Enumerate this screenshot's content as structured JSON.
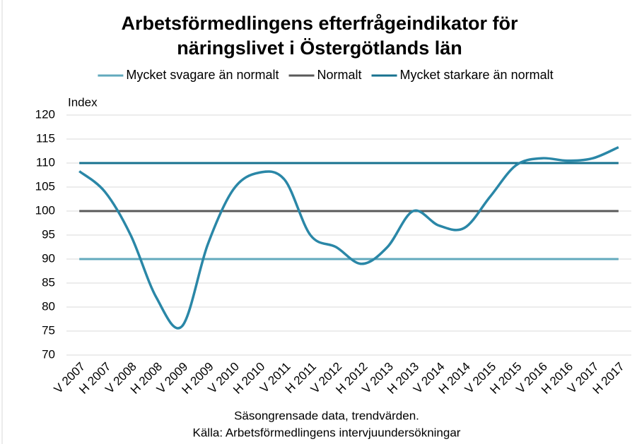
{
  "chart_data": {
    "type": "line",
    "title": [
      "Arbetsförmedlingens efterfrågeindikator för",
      "näringslivet i Östergötlands län"
    ],
    "y_label": "Index",
    "footnotes": [
      "Säsongrensade data, trendvärden.",
      "Källa: Arbetsförmedlingens intervjuundersökningar"
    ],
    "categories": [
      "V 2007",
      "H 2007",
      "V 2008",
      "H 2008",
      "V 2009",
      "H 2009",
      "V 2010",
      "H 2010",
      "V 2011",
      "H 2011",
      "V 2012",
      "H 2012",
      "V 2013",
      "H 2013",
      "V 2014",
      "H 2014",
      "V 2015",
      "H 2015",
      "V 2016",
      "H 2016",
      "V 2017",
      "H 2017"
    ],
    "series": [
      {
        "name": "Mycket svagare än normalt",
        "color": "#62a9bd",
        "values": [
          90,
          90,
          90,
          90,
          90,
          90,
          90,
          90,
          90,
          90,
          90,
          90,
          90,
          90,
          90,
          90,
          90,
          90,
          90,
          90,
          90,
          90
        ]
      },
      {
        "name": "Normalt",
        "color": "#595959",
        "values": [
          100,
          100,
          100,
          100,
          100,
          100,
          100,
          100,
          100,
          100,
          100,
          100,
          100,
          100,
          100,
          100,
          100,
          100,
          100,
          100,
          100,
          100
        ]
      },
      {
        "name": "Mycket starkare än normalt",
        "color": "#17728f",
        "values": [
          110,
          110,
          110,
          110,
          110,
          110,
          110,
          110,
          110,
          110,
          110,
          110,
          110,
          110,
          110,
          110,
          110,
          110,
          110,
          110,
          110,
          110
        ]
      },
      {
        "color": "#2a87a7",
        "values": [
          108.3,
          104,
          95,
          82,
          76,
          93,
          104.5,
          108,
          106.5,
          95,
          92.5,
          89,
          92.5,
          100,
          97,
          96.5,
          103,
          109.5,
          111,
          110.5,
          111,
          113.3
        ]
      }
    ],
    "ylim": [
      70,
      120
    ],
    "yticks": [
      70,
      75,
      80,
      85,
      90,
      95,
      100,
      105,
      110,
      115,
      120
    ],
    "grid": true
  }
}
